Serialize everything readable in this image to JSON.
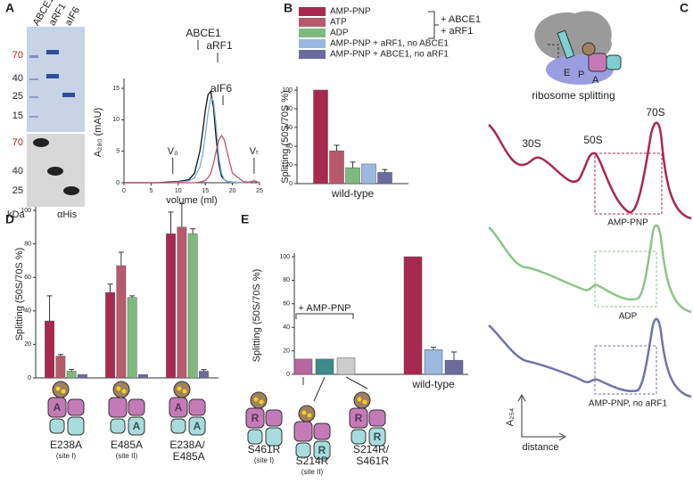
{
  "panel_labels": [
    "A",
    "B",
    "C",
    "D",
    "E"
  ],
  "gel": {
    "lanes": [
      "ABCE1",
      "aRF1",
      "aIF6"
    ],
    "markers": [
      "70",
      "40",
      "25",
      "15"
    ],
    "blot_markers": [
      "70",
      "40",
      "25"
    ],
    "unit": "kDa",
    "blot": "αHis"
  },
  "chart_data": [
    {
      "type": "line",
      "xlabel": "volume (ml)",
      "ylabel": "A₂₈₀ (mAU)",
      "x": [
        0,
        2,
        4,
        6,
        8,
        10,
        12,
        13,
        14,
        14.5,
        15,
        15.5,
        16,
        16.5,
        17,
        17.5,
        18,
        18.5,
        19,
        20,
        22,
        23,
        24,
        25
      ],
      "xlim": [
        0,
        25
      ],
      "xticks": [
        0,
        5,
        10,
        15,
        20,
        25
      ],
      "ylim": [
        0,
        16
      ],
      "yticks": [
        0,
        5,
        10,
        15
      ],
      "series": [
        {
          "name": "ABCE1",
          "color": "#111111",
          "values": [
            0,
            0,
            0,
            0,
            0.1,
            0.2,
            0.5,
            1.5,
            5,
            8,
            11.5,
            14,
            14.5,
            12,
            7,
            3,
            1,
            0.5,
            0.2,
            0.1,
            0,
            0,
            0.3,
            0
          ]
        },
        {
          "name": "aRF1",
          "color": "#7aaee0",
          "values": [
            0,
            0,
            0,
            0,
            0,
            0.1,
            0.3,
            0.8,
            2.5,
            4.5,
            7.5,
            11,
            13.5,
            13,
            9,
            4,
            1.5,
            0.5,
            0.2,
            0.1,
            0,
            0,
            0.3,
            0
          ]
        },
        {
          "name": "aIF6",
          "color": "#c0506a",
          "values": [
            0,
            0,
            0,
            0,
            0,
            0,
            0,
            0,
            0.1,
            0.2,
            0.4,
            0.8,
            1.5,
            3,
            5,
            6.8,
            7.5,
            6.8,
            5,
            1.5,
            0.2,
            0.1,
            0.3,
            0
          ]
        }
      ],
      "annotations": [
        {
          "text": "V₀",
          "x": 9
        },
        {
          "text": "Vₜ",
          "x": 24
        }
      ]
    },
    {
      "type": "bar",
      "ylabel": "Splitting (50S/70S %)",
      "categories": [
        "wild-type"
      ],
      "ylim": [
        0,
        100
      ],
      "yticks": [
        0,
        20,
        40,
        60,
        80,
        100
      ],
      "series": [
        {
          "name": "AMP-PNP",
          "color": "#a8294f",
          "values": [
            100
          ],
          "errors": [
            null
          ]
        },
        {
          "name": "ATP",
          "color": "#b85a6e",
          "values": [
            35
          ],
          "errors": [
            6
          ]
        },
        {
          "name": "ADP",
          "color": "#7fb97f",
          "values": [
            17
          ],
          "errors": [
            6
          ]
        },
        {
          "name": "AMP-PNP + aRF1, no ABCE1",
          "color": "#9bb8e0",
          "values": [
            21
          ],
          "errors": [
            null
          ]
        },
        {
          "name": "AMP-PNP + ABCE1, no aRF1",
          "color": "#6a6c9e",
          "values": [
            12
          ],
          "errors": [
            3
          ]
        }
      ],
      "legend_group": [
        "+ ABCE1",
        "+ aRF1"
      ]
    },
    {
      "type": "bar",
      "ylabel": "Splitting (50S/70S %)",
      "categories": [
        "E238A",
        "E485A",
        "E238A/ E485A"
      ],
      "category_notes": [
        "(site I)",
        "(site II)",
        null
      ],
      "ylim": [
        0,
        100
      ],
      "yticks": [
        0,
        20,
        40,
        60,
        80,
        100
      ],
      "series": [
        {
          "color": "#a8294f",
          "values": [
            34,
            51,
            86
          ],
          "errors": [
            15,
            5,
            13
          ]
        },
        {
          "color": "#b85a6e",
          "values": [
            13,
            67,
            90
          ],
          "errors": [
            1,
            8,
            14
          ]
        },
        {
          "color": "#7fb97f",
          "values": [
            4,
            48,
            86
          ],
          "errors": [
            1,
            1,
            3
          ]
        },
        {
          "color": "#6a6c9e",
          "values": [
            2,
            2,
            4
          ],
          "errors": [
            null,
            null,
            1
          ]
        }
      ],
      "cartoons": [
        {
          "top": "A"
        },
        {
          "bottom": "A"
        },
        {
          "top": "A",
          "bottom": "A"
        }
      ]
    },
    {
      "type": "bar",
      "ylabel": "Splitting (50S/70S %)",
      "categories": [
        "S461R",
        "S214R",
        "S214R/ S461R",
        null,
        "wild-type",
        null
      ],
      "category_notes": [
        "(site I)",
        "(site II)",
        null,
        null,
        null,
        null
      ],
      "values": [
        13,
        13,
        14,
        100,
        21,
        12
      ],
      "errors": [
        null,
        null,
        null,
        null,
        2,
        7
      ],
      "colors": [
        "#b5679e",
        "#3c8a8a",
        "#cccccc",
        "#a8294f",
        "#9bb8e0",
        "#6a6c9e"
      ],
      "ylim": [
        0,
        100
      ],
      "yticks": [
        0,
        20,
        40,
        60,
        80,
        100
      ],
      "bracket": "+ AMP-PNP",
      "cartoons": [
        {
          "top": "R"
        },
        {
          "bottom": "R"
        },
        {
          "top": "R",
          "bottom": "R"
        }
      ]
    }
  ],
  "panel_c": {
    "caption": "ribosome splitting",
    "sites": [
      "E",
      "P",
      "A"
    ],
    "peaks": [
      "30S",
      "50S",
      "70S"
    ],
    "traces": [
      "AMP-PNP",
      "ADP",
      "AMP-PNP, no aRF1"
    ],
    "ylabel": "A₂₅₄",
    "xlabel": "distance"
  }
}
